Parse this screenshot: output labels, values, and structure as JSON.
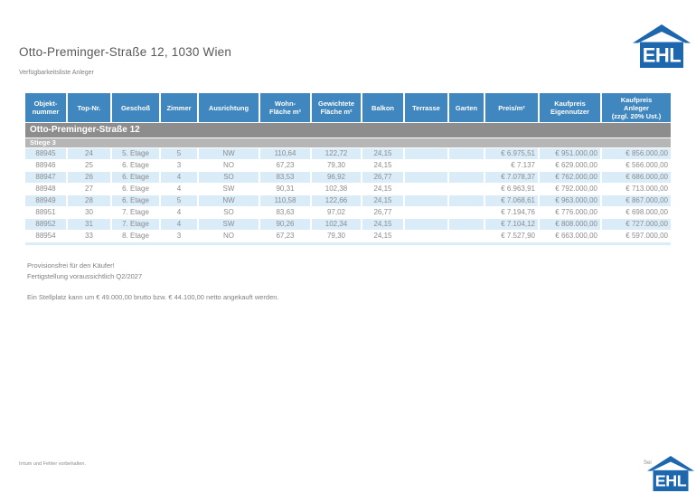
{
  "header": {
    "title": "Otto-Preminger-Straße 12, 1030 Wien",
    "subtitle": "Verfügbarkeitsliste Anleger"
  },
  "logo": {
    "text": "EHL"
  },
  "colors": {
    "header_blue": "#4187bf",
    "row_alt": "#d9ecf8",
    "group_gray": "#8d8d8d",
    "subgroup_gray": "#b6b6b6",
    "logo_blue": "#1c67ae",
    "text_gray": "#8c8c8c",
    "title_gray": "#585858",
    "note_gray": "#808080"
  },
  "table": {
    "columns": [
      "Objekt-\nnummer",
      "Top-Nr.",
      "Geschoß",
      "Zimmer",
      "Ausrichtung",
      "Wohn-\nFläche m²",
      "Gewichtete\nFläche m²",
      "Balkon",
      "Terrasse",
      "Garten",
      "Preis/m²",
      "Kaufpreis\nEigennutzer",
      "Kaufpreis\nAnleger\n(zzgl. 20% Ust.)"
    ],
    "group": "Otto-Preminger-Straße 12",
    "subgroup": "Stiege 3",
    "rows": [
      [
        "88945",
        "24",
        "5. Etage",
        "5",
        "NW",
        "110,64",
        "122,72",
        "24,15",
        "",
        "",
        "€ 6.975,51",
        "€ 951.000,00",
        "€ 856.000,00"
      ],
      [
        "88946",
        "25",
        "6. Etage",
        "3",
        "NO",
        "67,23",
        "79,30",
        "24,15",
        "",
        "",
        "€ 7.137",
        "€ 629.000,00",
        "€ 566.000,00"
      ],
      [
        "88947",
        "26",
        "6. Etage",
        "4",
        "SO",
        "83,53",
        "96,92",
        "26,77",
        "",
        "",
        "€ 7.078,37",
        "€ 762.000,00",
        "€ 686.000,00"
      ],
      [
        "88948",
        "27",
        "6. Etage",
        "4",
        "SW",
        "90,31",
        "102,38",
        "24,15",
        "",
        "",
        "€ 6.963,91",
        "€ 792.000,00",
        "€ 713.000,00"
      ],
      [
        "88949",
        "28",
        "6. Etage",
        "5",
        "NW",
        "110,58",
        "122,66",
        "24,15",
        "",
        "",
        "€ 7.068,61",
        "€ 963.000,00",
        "€ 867.000,00"
      ],
      [
        "88951",
        "30",
        "7. Etage",
        "4",
        "SO",
        "83,63",
        "97,02",
        "26,77",
        "",
        "",
        "€ 7.194,76",
        "€ 776.000,00",
        "€ 698.000,00"
      ],
      [
        "88952",
        "31",
        "7. Etage",
        "4",
        "SW",
        "90,26",
        "102,34",
        "24,15",
        "",
        "",
        "€ 7.104,12",
        "€ 808.000,00",
        "€ 727.000,00"
      ],
      [
        "88954",
        "33",
        "8. Etage",
        "3",
        "NO",
        "67,23",
        "79,30",
        "24,15",
        "",
        "",
        "€ 7.527,90",
        "€ 663.000,00",
        "€ 597.000,00"
      ]
    ]
  },
  "notes": [
    "Provisionsfrei für den Käufer!",
    "Fertigstellung voraussichtlich Q2/2027",
    "Ein Stellplatz kann um € 49.000,00 brutto bzw. € 44.100,00 netto angekauft werden."
  ],
  "footer": {
    "left": "Irrtum und Fehler vorbehalten.",
    "right": "Sei"
  }
}
